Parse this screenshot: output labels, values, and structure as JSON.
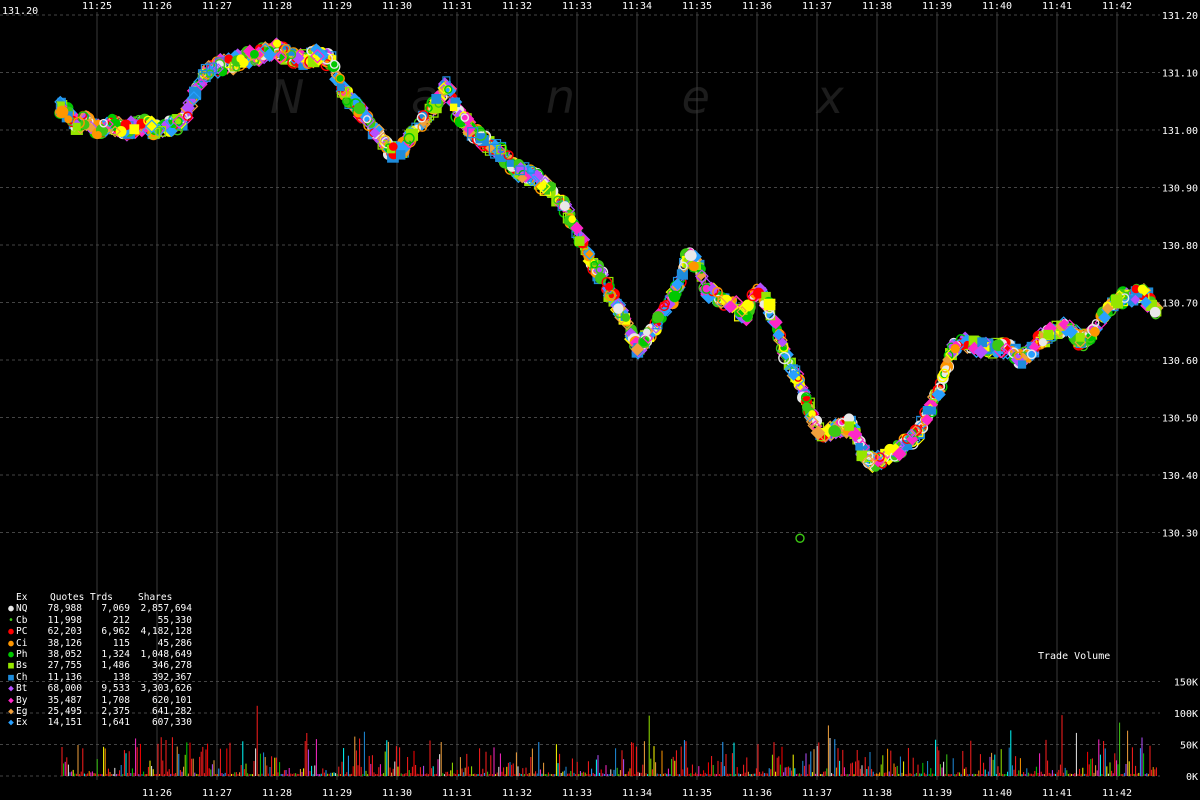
{
  "chart_data": {
    "type": "scatter",
    "title": "",
    "xlabel": "",
    "ylabel": "",
    "watermark": "N a n e x",
    "x_ticks": [
      "11:25",
      "11:26",
      "11:27",
      "11:28",
      "11:29",
      "11:30",
      "11:31",
      "11:32",
      "11:33",
      "11:34",
      "11:35",
      "11:36",
      "11:37",
      "11:38",
      "11:39",
      "11:40",
      "11:41",
      "11:42"
    ],
    "x_range": [
      "11:24:23",
      "11:42:40"
    ],
    "y_ticks": [
      "130.30",
      "130.40",
      "130.50",
      "130.60",
      "130.70",
      "130.80",
      "130.90",
      "131.00",
      "131.10",
      "131.20"
    ],
    "ylim": [
      130.2,
      131.2
    ],
    "grid": true,
    "price_path": [
      [
        "11:24:23",
        131.04
      ],
      [
        "11:24:30",
        131.03
      ],
      [
        "11:24:40",
        131.01
      ],
      [
        "11:24:50",
        131.02
      ],
      [
        "11:25:00",
        131.0
      ],
      [
        "11:25:15",
        131.01
      ],
      [
        "11:25:30",
        131.0
      ],
      [
        "11:25:45",
        131.01
      ],
      [
        "11:26:00",
        131.0
      ],
      [
        "11:26:20",
        131.01
      ],
      [
        "11:26:30",
        131.03
      ],
      [
        "11:26:40",
        131.08
      ],
      [
        "11:26:50",
        131.1
      ],
      [
        "11:27:00",
        131.11
      ],
      [
        "11:27:20",
        131.12
      ],
      [
        "11:27:40",
        131.13
      ],
      [
        "11:28:00",
        131.14
      ],
      [
        "11:28:20",
        131.12
      ],
      [
        "11:28:40",
        131.13
      ],
      [
        "11:28:55",
        131.12
      ],
      [
        "11:29:05",
        131.07
      ],
      [
        "11:29:20",
        131.04
      ],
      [
        "11:29:35",
        131.01
      ],
      [
        "11:29:50",
        130.97
      ],
      [
        "11:30:00",
        130.96
      ],
      [
        "11:30:20",
        131.0
      ],
      [
        "11:30:40",
        131.05
      ],
      [
        "11:30:50",
        131.08
      ],
      [
        "11:31:00",
        131.03
      ],
      [
        "11:31:20",
        130.99
      ],
      [
        "11:31:35",
        130.97
      ],
      [
        "11:31:45",
        130.96
      ],
      [
        "11:32:00",
        130.93
      ],
      [
        "11:32:15",
        130.92
      ],
      [
        "11:32:30",
        130.9
      ],
      [
        "11:32:50",
        130.86
      ],
      [
        "11:33:00",
        130.82
      ],
      [
        "11:33:15",
        130.77
      ],
      [
        "11:33:30",
        130.73
      ],
      [
        "11:33:45",
        130.68
      ],
      [
        "11:34:00",
        130.62
      ],
      [
        "11:34:10",
        130.64
      ],
      [
        "11:34:25",
        130.68
      ],
      [
        "11:34:40",
        130.72
      ],
      [
        "11:34:50",
        130.78
      ],
      [
        "11:35:00",
        130.77
      ],
      [
        "11:35:10",
        130.72
      ],
      [
        "11:35:30",
        130.7
      ],
      [
        "11:35:50",
        130.68
      ],
      [
        "11:36:00",
        130.72
      ],
      [
        "11:36:10",
        130.7
      ],
      [
        "11:36:30",
        130.6
      ],
      [
        "11:36:45",
        130.55
      ],
      [
        "11:36:55",
        130.5
      ],
      [
        "11:37:05",
        130.47
      ],
      [
        "11:37:20",
        130.48
      ],
      [
        "11:37:35",
        130.49
      ],
      [
        "11:37:45",
        130.44
      ],
      [
        "11:37:55",
        130.42
      ],
      [
        "11:38:10",
        130.43
      ],
      [
        "11:38:25",
        130.45
      ],
      [
        "11:38:40",
        130.47
      ],
      [
        "11:38:55",
        130.52
      ],
      [
        "11:39:05",
        130.56
      ],
      [
        "11:39:15",
        130.62
      ],
      [
        "11:39:30",
        130.63
      ],
      [
        "11:39:50",
        130.62
      ],
      [
        "11:40:10",
        130.62
      ],
      [
        "11:40:25",
        130.6
      ],
      [
        "11:40:40",
        130.63
      ],
      [
        "11:40:55",
        130.65
      ],
      [
        "11:41:10",
        130.66
      ],
      [
        "11:41:25",
        130.63
      ],
      [
        "11:41:40",
        130.66
      ],
      [
        "11:41:55",
        130.7
      ],
      [
        "11:42:10",
        130.71
      ],
      [
        "11:42:25",
        130.72
      ],
      [
        "11:42:40",
        130.68
      ]
    ],
    "outlier": [
      "11:36:43",
      130.29
    ],
    "volume": {
      "label": "Trade Volume",
      "ticks": [
        "0K",
        "50K",
        "100K",
        "150K"
      ],
      "ylim": [
        0,
        200000
      ]
    },
    "legend": {
      "headers": [
        "Ex",
        "Quotes",
        "Trds",
        "Shares"
      ],
      "rows": [
        {
          "ex": "NQ",
          "quotes": "78,988",
          "trds": "7,069",
          "shares": "2,857,694",
          "color": "#e8e8e8",
          "shape": "circle"
        },
        {
          "ex": "Cb",
          "quotes": "11,998",
          "trds": "212",
          "shares": "55,330",
          "color": "#3cc814",
          "shape": "circle-small"
        },
        {
          "ex": "PC",
          "quotes": "62,203",
          "trds": "6,962",
          "shares": "4,182,128",
          "color": "#ff0000",
          "shape": "circle"
        },
        {
          "ex": "Ci",
          "quotes": "38,126",
          "trds": "115",
          "shares": "45,286",
          "color": "#ff9600",
          "shape": "circle"
        },
        {
          "ex": "Ph",
          "quotes": "38,052",
          "trds": "1,324",
          "shares": "1,048,649",
          "color": "#00c800",
          "shape": "circle"
        },
        {
          "ex": "Bs",
          "quotes": "27,755",
          "trds": "1,486",
          "shares": "346,278",
          "color": "#96e600",
          "shape": "square"
        },
        {
          "ex": "Ch",
          "quotes": "11,136",
          "trds": "138",
          "shares": "392,367",
          "color": "#1e8cdc",
          "shape": "square"
        },
        {
          "ex": "Bt",
          "quotes": "68,000",
          "trds": "9,533",
          "shares": "3,303,626",
          "color": "#b450ff",
          "shape": "diamond"
        },
        {
          "ex": "By",
          "quotes": "35,487",
          "trds": "1,708",
          "shares": "620,101",
          "color": "#ff28c8",
          "shape": "diamond"
        },
        {
          "ex": "Eg",
          "quotes": "25,495",
          "trds": "2,375",
          "shares": "641,282",
          "color": "#f0a03c",
          "shape": "diamond"
        },
        {
          "ex": "Ex",
          "quotes": "14,151",
          "trds": "1,641",
          "shares": "607,330",
          "color": "#28a0ff",
          "shape": "diamond"
        }
      ]
    }
  }
}
